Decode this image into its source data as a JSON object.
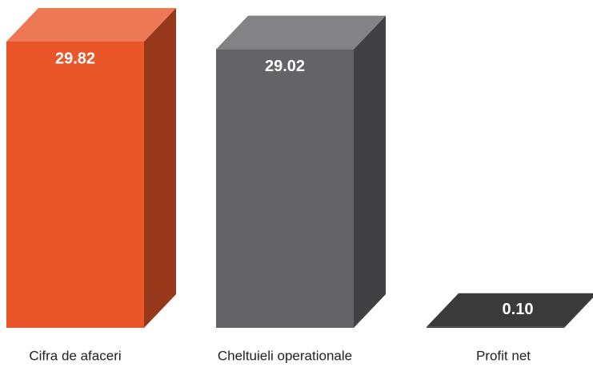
{
  "chart_data": {
    "type": "bar3d",
    "categories": [
      "Cifra de afaceri",
      "Cheltuieli operationale",
      "Profit net"
    ],
    "values": [
      29.82,
      29.02,
      0.1
    ],
    "value_labels": [
      "29.82",
      "29.02",
      "0.10"
    ],
    "colors": [
      "#e8562a",
      "#646468",
      "#3a3a3a"
    ]
  }
}
